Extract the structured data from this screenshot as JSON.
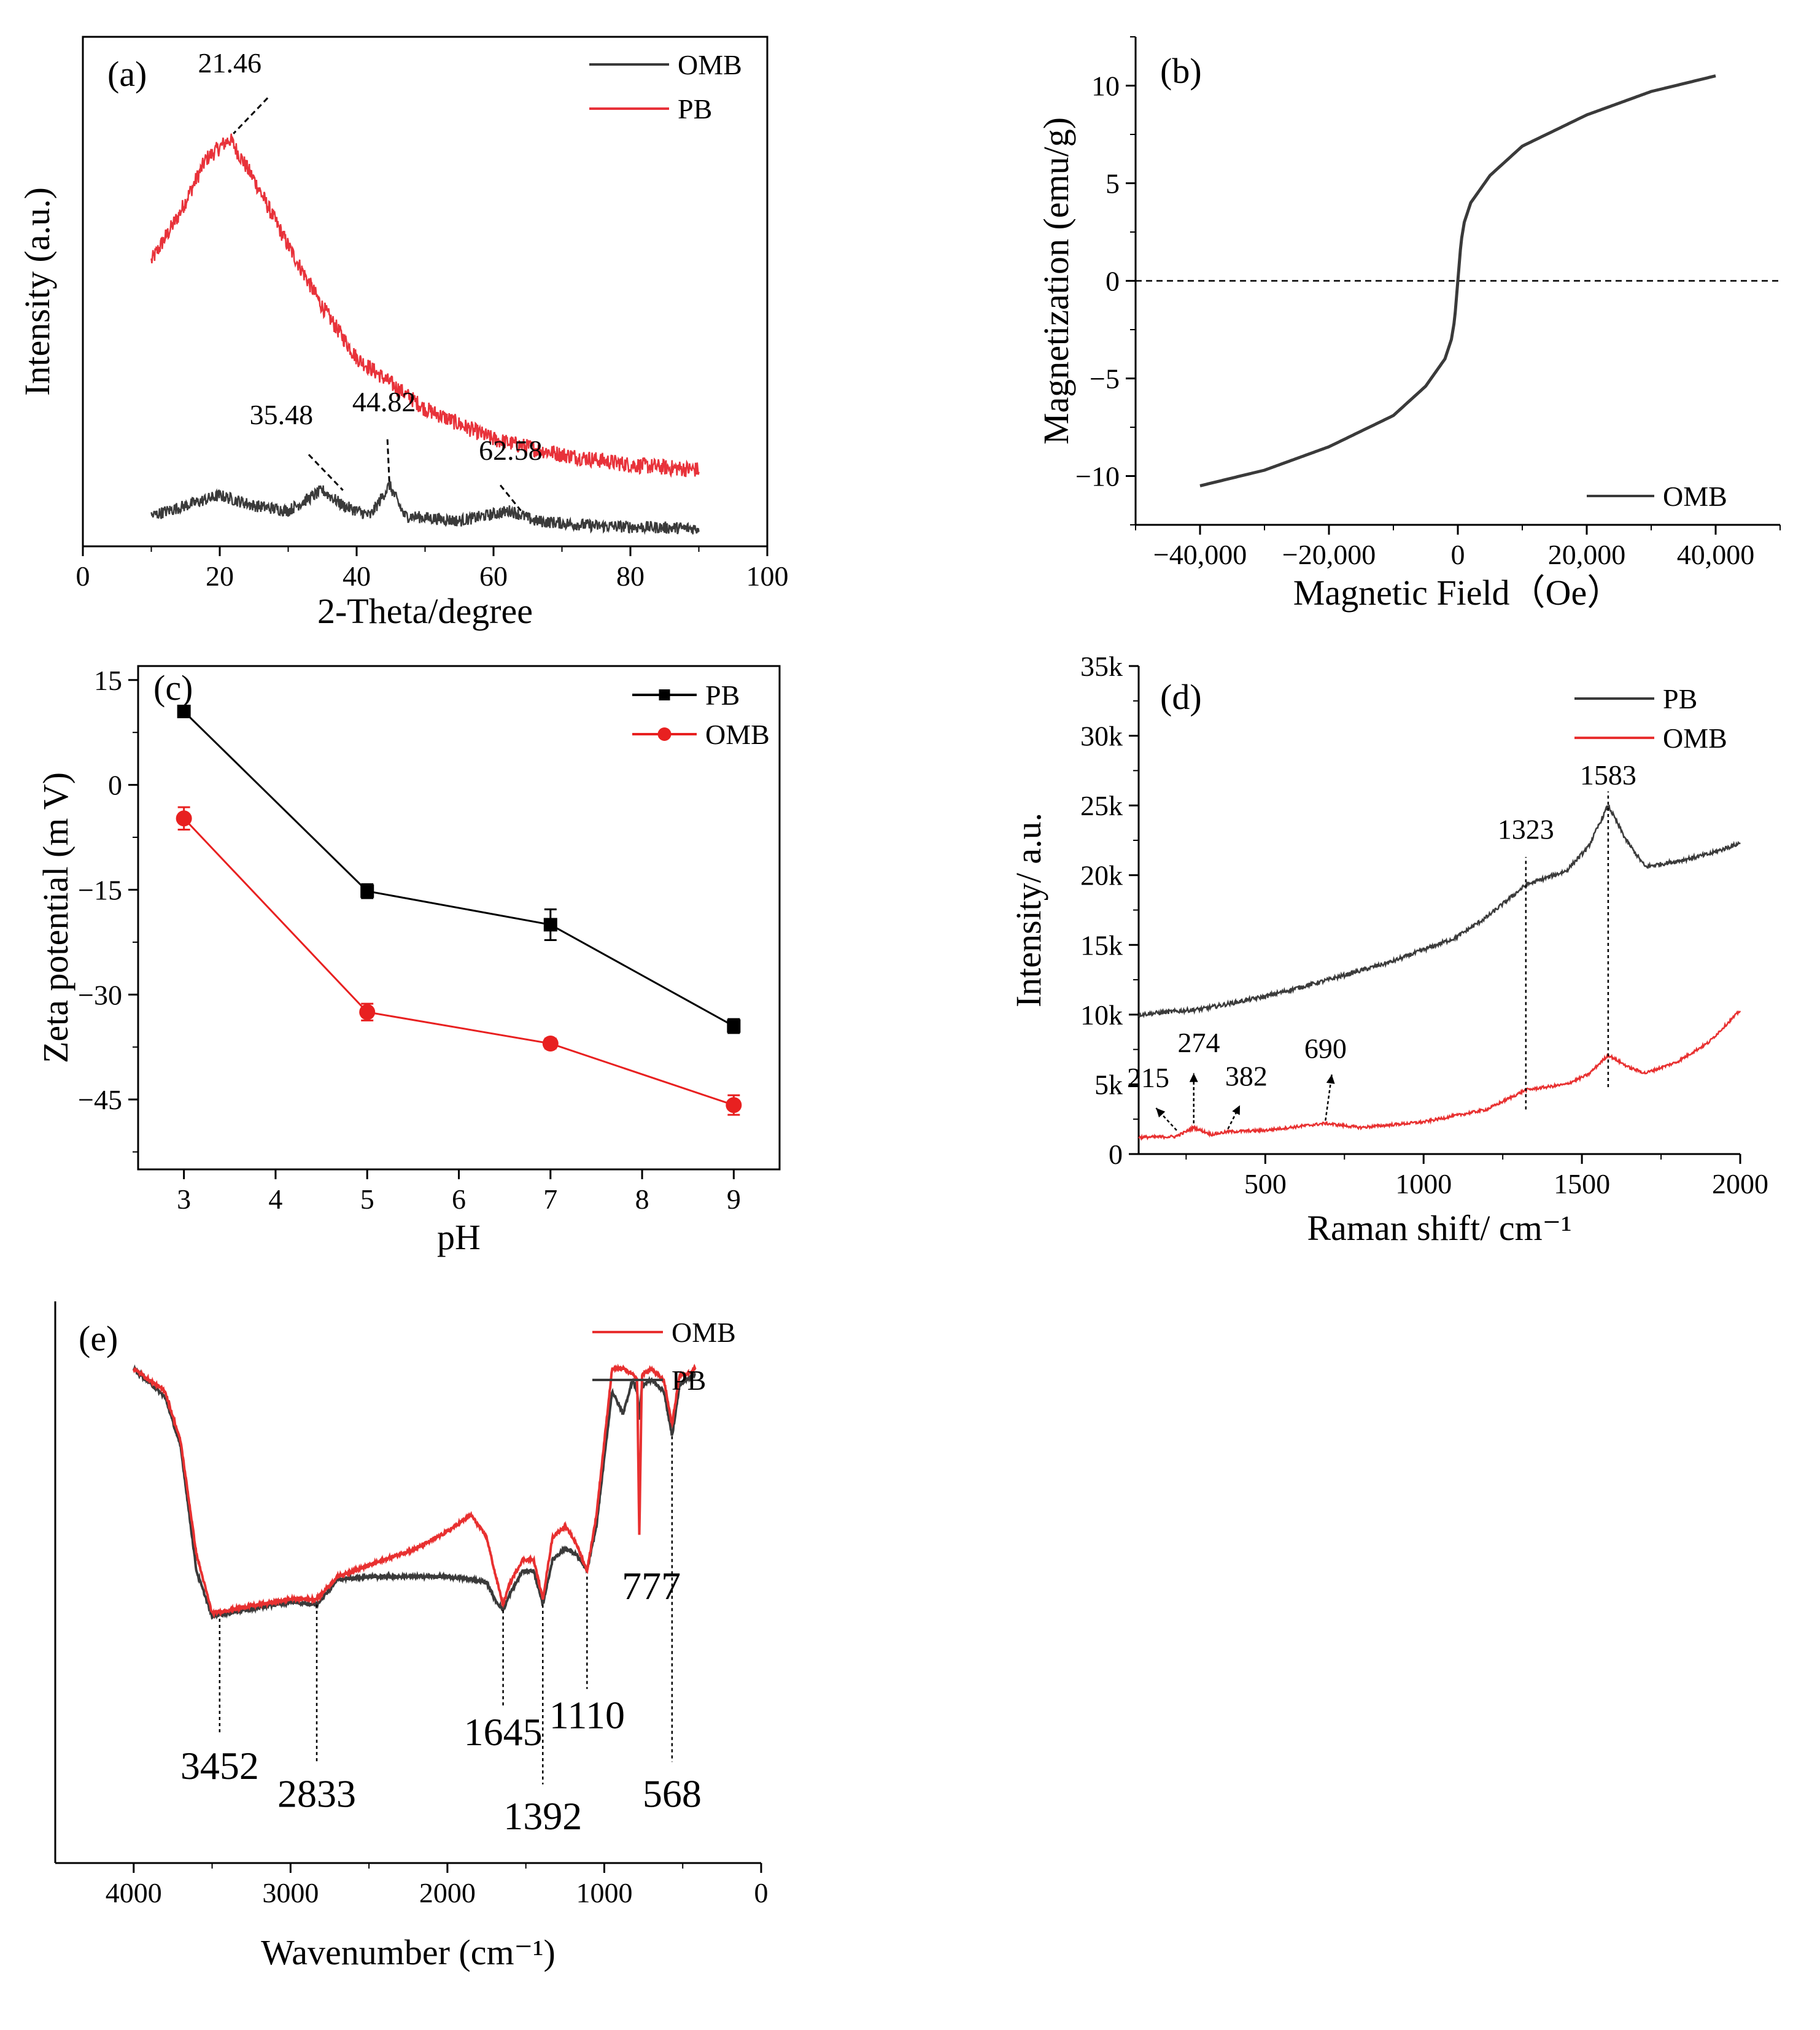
{
  "figure": {
    "description_panels": [
      "a",
      "b",
      "c",
      "d",
      "e"
    ]
  },
  "chart_data": [
    {
      "id": "a",
      "type": "line",
      "panel_label": "(a)",
      "xlabel": "2-Theta/degree",
      "ylabel": "Intensity (a.u.)",
      "xlim": [
        0,
        100
      ],
      "ylim": [
        0,
        100
      ],
      "xticks": [
        0,
        20,
        40,
        60,
        80,
        100
      ],
      "yticks_shown": false,
      "legend": {
        "placement": "top-right",
        "entries": [
          "OMB",
          "PB"
        ]
      },
      "series": [
        {
          "name": "OMB",
          "color": "#3a3a3a",
          "x": [
            10,
            15,
            20,
            25,
            30,
            35,
            38,
            42,
            44.8,
            47,
            55,
            62.5,
            66,
            75,
            90
          ],
          "y": [
            6,
            8,
            10,
            8,
            7,
            11,
            8,
            6,
            12,
            6,
            5,
            7,
            5,
            4,
            3.5
          ]
        },
        {
          "name": "PB",
          "color": "#e8323a",
          "x": [
            10,
            14,
            18,
            21.46,
            25,
            30,
            35,
            40,
            50,
            60,
            70,
            80,
            90
          ],
          "y": [
            56,
            65,
            76,
            80,
            72,
            59,
            47,
            37,
            27,
            21,
            18,
            16,
            15
          ]
        }
      ],
      "annotations": [
        {
          "label": "21.46",
          "x": 21.46,
          "series": "PB"
        },
        {
          "label": "35.48",
          "x": 35.48,
          "series": "OMB"
        },
        {
          "label": "44.82",
          "x": 44.82,
          "series": "OMB"
        },
        {
          "label": "62.58",
          "x": 62.58,
          "series": "OMB"
        }
      ]
    },
    {
      "id": "b",
      "type": "line",
      "panel_label": "(b)",
      "xlabel": "Magnetic Field（Oe）",
      "ylabel": "Magnetization (emu/g)",
      "xlim": [
        -50000,
        50000
      ],
      "ylim": [
        -12.5,
        12.5
      ],
      "xticks": [
        -40000,
        -20000,
        0,
        20000,
        40000
      ],
      "xtick_labels": [
        "−40,000",
        "−20,000",
        "0",
        "20,000",
        "40,000"
      ],
      "yticks": [
        -10,
        -5,
        0,
        5,
        10
      ],
      "ytick_labels": [
        "−10",
        "−5",
        "0",
        "5",
        "10"
      ],
      "legend": {
        "placement": "bottom-right",
        "entries": [
          "OMB"
        ]
      },
      "series": [
        {
          "name": "OMB",
          "color": "#3a3a3a",
          "x": [
            -40000,
            -30000,
            -20000,
            -10000,
            -5000,
            -2000,
            -1000,
            -500,
            0,
            500,
            1000,
            2000,
            5000,
            10000,
            20000,
            30000,
            40000
          ],
          "y": [
            -10.5,
            -9.7,
            -8.5,
            -6.9,
            -5.4,
            -4.0,
            -3.0,
            -2.0,
            0,
            2.0,
            3.0,
            4.0,
            5.4,
            6.9,
            8.5,
            9.7,
            10.5
          ]
        }
      ],
      "reference_line": {
        "y": 0,
        "style": "dashed"
      }
    },
    {
      "id": "c",
      "type": "line",
      "panel_label": "(c)",
      "xlabel": "pH",
      "ylabel": "Zeta potential (m V)",
      "xlim": [
        2.5,
        9.5
      ],
      "ylim": [
        -55,
        17
      ],
      "xticks": [
        3,
        4,
        5,
        6,
        7,
        8,
        9
      ],
      "yticks": [
        15,
        0,
        -15,
        -30,
        -45
      ],
      "ytick_labels": [
        "15",
        "0",
        "−15",
        "−30",
        "−45"
      ],
      "legend": {
        "placement": "top-right",
        "entries": [
          "PB",
          "OMB"
        ]
      },
      "series": [
        {
          "name": "PB",
          "color": "#000000",
          "marker": "square",
          "x": [
            3,
            5,
            7,
            9
          ],
          "y": [
            10.5,
            -15.2,
            -20,
            -34.5
          ],
          "err": [
            0.5,
            1.0,
            2.2,
            1.0
          ]
        },
        {
          "name": "OMB",
          "color": "#e82020",
          "marker": "circle",
          "x": [
            3,
            5,
            7,
            9
          ],
          "y": [
            -4.8,
            -32.5,
            -37,
            -45.8
          ],
          "err": [
            1.6,
            1.2,
            0.7,
            1.4
          ]
        }
      ]
    },
    {
      "id": "d",
      "type": "line",
      "panel_label": "(d)",
      "xlabel": "Raman shift/ cm⁻¹",
      "ylabel": "Intensity/ a.u.",
      "xlim": [
        100,
        2000
      ],
      "ylim": [
        0,
        35000
      ],
      "xticks": [
        500,
        1000,
        1500,
        2000
      ],
      "yticks": [
        0,
        5000,
        10000,
        15000,
        20000,
        25000,
        30000,
        35000
      ],
      "ytick_labels": [
        "0",
        "5k",
        "10k",
        "15k",
        "20k",
        "25k",
        "30k",
        "35k"
      ],
      "legend": {
        "placement": "top-right",
        "entries": [
          "PB",
          "OMB"
        ]
      },
      "series": [
        {
          "name": "PB",
          "color": "#3a3a3a",
          "x": [
            100,
            300,
            500,
            700,
            900,
            1100,
            1200,
            1323,
            1450,
            1520,
            1583,
            1640,
            1700,
            1800,
            1900,
            2000
          ],
          "y": [
            10000,
            10400,
            11300,
            12500,
            13800,
            15500,
            17000,
            19300,
            20300,
            22000,
            25000,
            22500,
            20600,
            21000,
            21500,
            22300
          ]
        },
        {
          "name": "OMB",
          "color": "#e83030",
          "x": [
            100,
            215,
            240,
            274,
            330,
            382,
            500,
            690,
            800,
            1000,
            1200,
            1323,
            1450,
            1520,
            1583,
            1650,
            1700,
            1800,
            1900,
            2000
          ],
          "y": [
            1200,
            1250,
            1500,
            1900,
            1400,
            1600,
            1700,
            2200,
            1900,
            2300,
            3200,
            4600,
            5000,
            5700,
            7100,
            6200,
            5800,
            6600,
            8000,
            10300
          ]
        }
      ],
      "annotations": [
        {
          "label": "215",
          "x": 215
        },
        {
          "label": "274",
          "x": 274
        },
        {
          "label": "382",
          "x": 382
        },
        {
          "label": "690",
          "x": 690
        },
        {
          "label": "1323",
          "x": 1323
        },
        {
          "label": "1583",
          "x": 1583
        }
      ]
    },
    {
      "id": "e",
      "type": "line",
      "panel_label": "(e)",
      "xlabel": "Wavenumber (cm⁻¹)",
      "ylabel": "",
      "xlim": [
        4500,
        0
      ],
      "ylim": [
        0,
        100
      ],
      "xticks": [
        4000,
        3000,
        2000,
        1000,
        0
      ],
      "yticks_shown": false,
      "legend": {
        "placement": "top-right",
        "entries": [
          "OMB",
          "PB"
        ]
      },
      "series": [
        {
          "name": "OMB",
          "color": "#e83030",
          "x": [
            4000,
            3800,
            3700,
            3600,
            3500,
            3400,
            3200,
            3000,
            2833,
            2700,
            2500,
            2200,
            2000,
            1850,
            1750,
            1700,
            1645,
            1600,
            1520,
            1450,
            1392,
            1330,
            1250,
            1180,
            1110,
            1050,
            950,
            880,
            820,
            790,
            777,
            760,
            700,
            620,
            568,
            520,
            480,
            420
          ],
          "y": [
            88,
            84,
            75,
            55,
            44.5,
            45,
            46,
            47,
            47,
            51,
            53,
            56,
            59,
            62,
            58,
            52,
            46,
            50,
            54,
            54,
            47,
            58,
            60,
            57,
            52,
            62,
            88,
            88,
            87,
            86,
            58,
            87,
            88,
            86,
            78,
            87,
            87,
            88
          ]
        },
        {
          "name": "PB",
          "color": "#3a3a3a",
          "x": [
            4000,
            3800,
            3700,
            3600,
            3500,
            3400,
            3200,
            3000,
            2833,
            2700,
            2500,
            2200,
            2000,
            1850,
            1750,
            1700,
            1645,
            1600,
            1520,
            1450,
            1392,
            1330,
            1250,
            1180,
            1110,
            1050,
            950,
            880,
            820,
            790,
            777,
            760,
            700,
            620,
            568,
            520,
            480,
            420
          ],
          "y": [
            88,
            83,
            74,
            52,
            44,
            44.5,
            45.5,
            46.5,
            46,
            50.5,
            51,
            51,
            51,
            50.5,
            50,
            47,
            45,
            48,
            52,
            52,
            46,
            54,
            56,
            55,
            52,
            60,
            84,
            80,
            86,
            84,
            79,
            85,
            86,
            84,
            76,
            85,
            86,
            87
          ]
        }
      ],
      "annotations": [
        {
          "label": "3452",
          "x": 3452
        },
        {
          "label": "2833",
          "x": 2833
        },
        {
          "label": "1645",
          "x": 1645
        },
        {
          "label": "1392",
          "x": 1392
        },
        {
          "label": "1110",
          "x": 1110
        },
        {
          "label": "777",
          "x": 777
        },
        {
          "label": "568",
          "x": 568
        }
      ]
    }
  ]
}
